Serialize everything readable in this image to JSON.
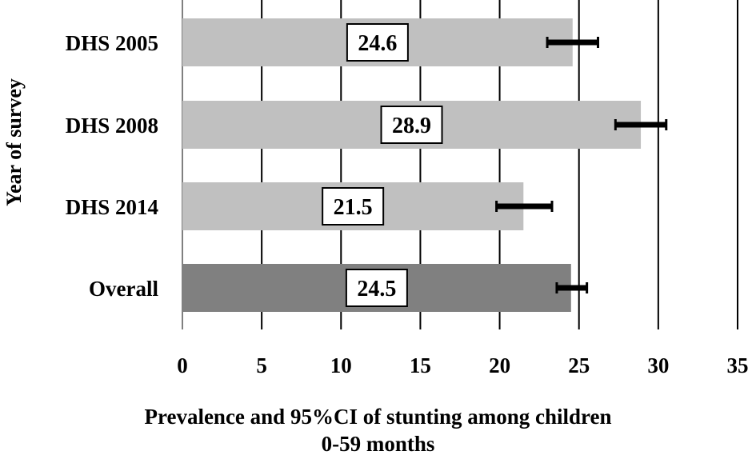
{
  "chart_data": {
    "type": "bar",
    "orientation": "horizontal",
    "categories": [
      "DHS 2005",
      "DHS 2008",
      "DHS 2014",
      "Overall"
    ],
    "values": [
      24.6,
      28.9,
      21.5,
      24.5
    ],
    "ci_lower": [
      23.0,
      27.3,
      19.8,
      23.6
    ],
    "ci_upper": [
      26.2,
      30.5,
      23.3,
      25.5
    ],
    "data_labels": [
      "24.6",
      "28.9",
      "21.5",
      "24.5"
    ],
    "bar_colors": [
      "#c0c0c0",
      "#c0c0c0",
      "#c0c0c0",
      "#808080"
    ],
    "xlim": [
      0,
      35
    ],
    "xticks": [
      0,
      5,
      10,
      15,
      20,
      25,
      30,
      35
    ],
    "xlabel_lines": [
      "Prevalence and 95%CI of stunting among children",
      "0-59 months"
    ],
    "ylabel": "Year of survey",
    "grid": "vertical"
  }
}
